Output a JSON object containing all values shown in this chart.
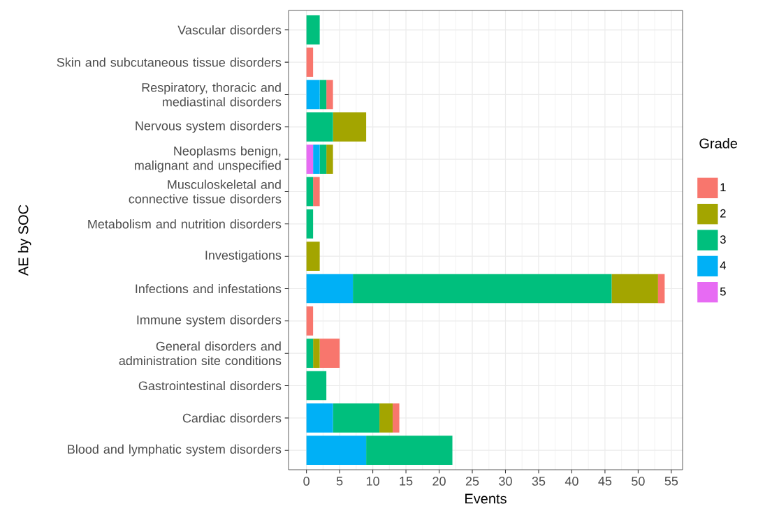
{
  "chart_data": {
    "type": "bar",
    "orientation": "horizontal",
    "stacked": true,
    "xlabel": "Events",
    "ylabel": "AE by SOC",
    "legend_title": "Grade",
    "legend": "right",
    "grid": true,
    "categories": [
      "Vascular disorders",
      "Skin and subcutaneous tissue disorders",
      "Respiratory, thoracic and mediastinal disorders",
      "Nervous system disorders",
      "Neoplasms benign, malignant and unspecified",
      "Musculoskeletal and connective tissue disorders",
      "Metabolism and nutrition disorders",
      "Investigations",
      "Infections and infestations",
      "Immune system disorders",
      "General disorders and administration site conditions",
      "Gastrointestinal disorders",
      "Cardiac disorders",
      "Blood and lymphatic system disorders"
    ],
    "xlim": [
      -2.7,
      56.7
    ],
    "xticks": [
      0,
      5,
      10,
      15,
      20,
      25,
      30,
      35,
      40,
      45,
      50,
      55
    ],
    "series": [
      {
        "name": "5",
        "color": "#e76bf3",
        "values": [
          0,
          0,
          0,
          0,
          1,
          0,
          0,
          0,
          0,
          0,
          0,
          0,
          0,
          0
        ]
      },
      {
        "name": "4",
        "color": "#00b0f6",
        "values": [
          0,
          0,
          2,
          0,
          1,
          0,
          0,
          0,
          7,
          0,
          0,
          0,
          4,
          9
        ]
      },
      {
        "name": "3",
        "color": "#00bf7d",
        "values": [
          2,
          0,
          1,
          4,
          1,
          1,
          1,
          0,
          39,
          0,
          1,
          3,
          7,
          13
        ]
      },
      {
        "name": "2",
        "color": "#a3a500",
        "values": [
          0,
          0,
          0,
          5,
          1,
          0,
          0,
          2,
          7,
          0,
          1,
          0,
          2,
          0
        ]
      },
      {
        "name": "1",
        "color": "#f8766d",
        "values": [
          0,
          1,
          1,
          0,
          0,
          1,
          0,
          0,
          1,
          1,
          3,
          0,
          1,
          0
        ]
      }
    ]
  }
}
